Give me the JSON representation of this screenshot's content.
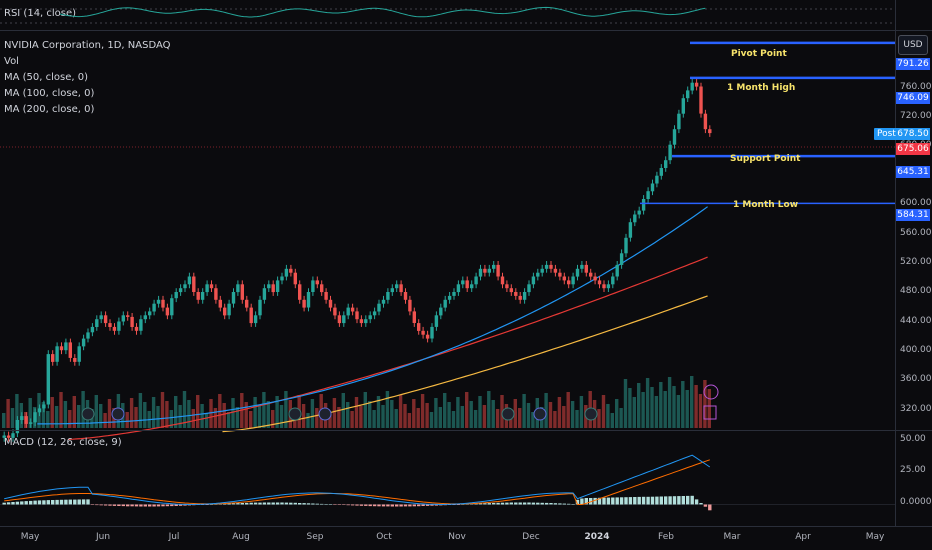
{
  "rsi": {
    "label": "RSI (14, close)"
  },
  "legend": {
    "title": "NVIDIA Corporation, 1D, NASDAQ",
    "vol": "Vol",
    "ma50": "MA (50, close, 0)",
    "ma100": "MA (100, close, 0)",
    "ma200": "MA (200, close, 0)"
  },
  "currency_button": "USD",
  "post_badge": "Post",
  "levels": [
    {
      "label": "Pivot Point",
      "value": "791.26",
      "price": 791.26
    },
    {
      "label": "1 Month High",
      "value": "746.09",
      "price": 746.09
    },
    {
      "label": "Support Point",
      "value": "645.31",
      "price": 645.31
    },
    {
      "label": "1 Month Low",
      "value": "584.31",
      "price": 584.31
    }
  ],
  "price_tags": {
    "post": "678.50",
    "last": "675.06"
  },
  "price_axis_ticks": [
    "760.00",
    "720.00",
    "680.00",
    "600.00",
    "560.00",
    "520.00",
    "480.00",
    "440.00",
    "400.00",
    "360.00",
    "320.00"
  ],
  "macd": {
    "label": "MACD (12, 26, close, 9)",
    "ticks": [
      "50.00",
      "25.00",
      "0.0000"
    ]
  },
  "time_axis": [
    "May",
    "Jun",
    "Jul",
    "Aug",
    "Sep",
    "Oct",
    "Nov",
    "Dec",
    "2024",
    "Feb",
    "Mar",
    "Apr",
    "May"
  ],
  "colors": {
    "up": "#26a69a",
    "down": "#ef5350",
    "ma50": "#2196f3",
    "ma100": "#e53935",
    "ma200": "#f5b942",
    "level": "#2962ff",
    "macd": "#2196f3",
    "signal": "#ff6d00"
  },
  "chart_data": {
    "type": "candlestick",
    "symbol": "NVIDIA Corporation, 1D, NASDAQ",
    "ylim": [
      305,
      795
    ],
    "close": [
      285,
      282,
      288,
      305,
      310,
      300,
      302,
      315,
      320,
      325,
      390,
      380,
      400,
      395,
      405,
      385,
      380,
      400,
      410,
      418,
      425,
      435,
      440,
      430,
      425,
      420,
      432,
      440,
      438,
      425,
      420,
      435,
      440,
      445,
      455,
      460,
      450,
      440,
      462,
      470,
      475,
      480,
      490,
      470,
      460,
      470,
      480,
      475,
      460,
      450,
      440,
      455,
      470,
      480,
      460,
      450,
      430,
      440,
      460,
      475,
      480,
      470,
      485,
      490,
      500,
      495,
      480,
      460,
      450,
      470,
      485,
      480,
      470,
      460,
      450,
      440,
      430,
      440,
      450,
      445,
      435,
      430,
      435,
      440,
      445,
      455,
      460,
      470,
      475,
      480,
      470,
      460,
      445,
      430,
      420,
      415,
      410,
      425,
      440,
      450,
      460,
      465,
      470,
      480,
      485,
      475,
      480,
      490,
      500,
      495,
      500,
      505,
      490,
      480,
      475,
      470,
      465,
      460,
      470,
      480,
      490,
      495,
      500,
      505,
      500,
      495,
      490,
      485,
      480,
      490,
      500,
      505,
      495,
      490,
      485,
      480,
      475,
      480,
      490,
      505,
      520,
      540,
      560,
      570,
      575,
      590,
      600,
      610,
      620,
      630,
      640,
      660,
      680,
      700,
      720,
      730,
      740,
      735,
      700,
      680,
      675
    ],
    "ma50_end": 580,
    "ma100_end": 515,
    "ma200_end": 470,
    "macd_ylim": [
      -10,
      55
    ]
  }
}
